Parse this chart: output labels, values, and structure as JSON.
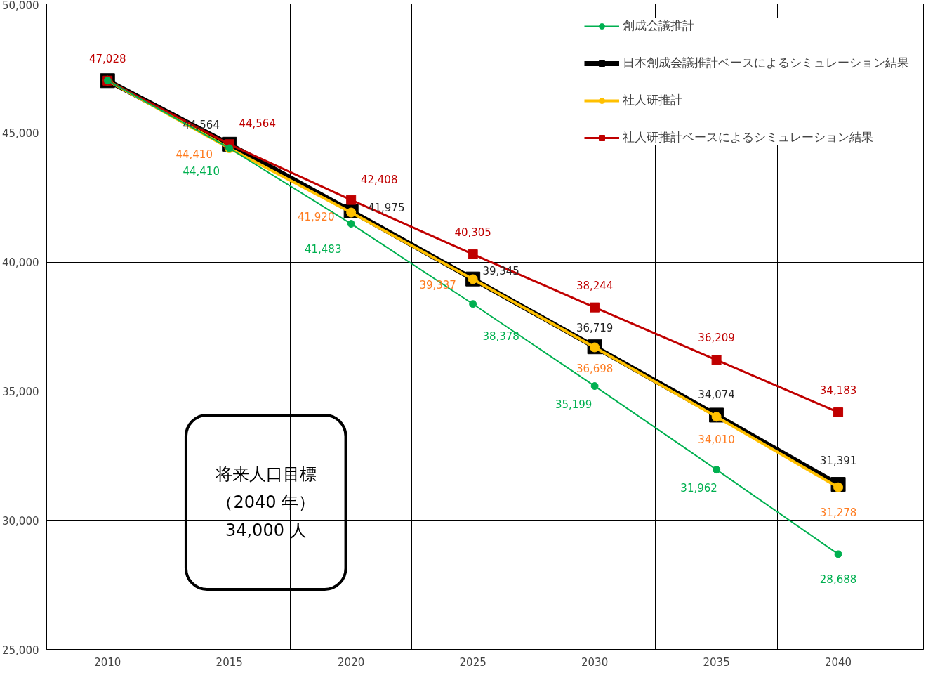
{
  "chart_data": {
    "type": "line",
    "categories": [
      "2010",
      "2015",
      "2020",
      "2025",
      "2030",
      "2035",
      "2040"
    ],
    "ylim": [
      25000,
      50000
    ],
    "yticks": [
      {
        "value": 25000,
        "label": "25,000"
      },
      {
        "value": 30000,
        "label": "30,000"
      },
      {
        "value": 35000,
        "label": "35,000"
      },
      {
        "value": 40000,
        "label": "40,000"
      },
      {
        "value": 45000,
        "label": "45,000"
      },
      {
        "value": 50000,
        "label": "50,000"
      }
    ],
    "grid": true,
    "legend": "top right",
    "series": [
      {
        "name": "創成会議推計",
        "color": "#00b050",
        "marker": "circle",
        "values": [
          47028,
          44410,
          41483,
          38378,
          35199,
          31962,
          28688
        ],
        "value_labels": [
          null,
          "44,410",
          "41,483",
          "38,378",
          "35,199",
          "31,962",
          "28,688"
        ]
      },
      {
        "name": "日本創成会議推計ベースによるシミュレーション結果",
        "color": "#000000",
        "marker": "square",
        "values": [
          47028,
          44564,
          41975,
          39345,
          36719,
          34074,
          31391
        ],
        "value_labels": [
          null,
          "44,564",
          "41,975",
          "39,345",
          "36,719",
          "34,074",
          "31,391"
        ]
      },
      {
        "name": "社人研推計",
        "color": "#ffc000",
        "marker": "circle",
        "values": [
          47028,
          44410,
          41920,
          39337,
          36698,
          34010,
          31278
        ],
        "value_labels": [
          null,
          "44,410",
          "41,920",
          "39,337",
          "36,698",
          "34,010",
          "31,278"
        ]
      },
      {
        "name": "社人研推計ベースによるシミュレーション結果",
        "color": "#c00000",
        "marker": "square",
        "values": [
          47028,
          44564,
          42408,
          40305,
          38244,
          36209,
          34183
        ],
        "value_labels": [
          "47,028",
          "44,564",
          "42,408",
          "40,305",
          "38,244",
          "36,209",
          "34,183"
        ]
      }
    ],
    "annotations": [
      "将来人口目標",
      "（2040 年）",
      "34,000 人"
    ]
  }
}
